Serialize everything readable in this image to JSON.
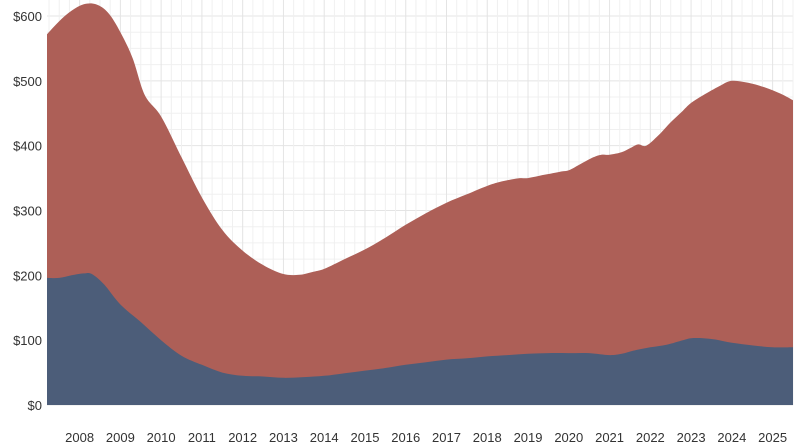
{
  "chart_data": {
    "type": "area",
    "stacked": false,
    "title": "",
    "xlabel": "",
    "ylabel": "",
    "grid": true,
    "xlim": [
      2007.2,
      2025.5
    ],
    "ylim": [
      0,
      600
    ],
    "y_ticks": [
      0,
      100,
      200,
      300,
      400,
      500,
      600
    ],
    "y_tick_labels": [
      "$0",
      "$100",
      "$200",
      "$300",
      "$400",
      "$500",
      "$600"
    ],
    "x_ticks": [
      2008,
      2009,
      2010,
      2011,
      2012,
      2013,
      2014,
      2015,
      2016,
      2017,
      2018,
      2019,
      2020,
      2021,
      2022,
      2023,
      2024,
      2025
    ],
    "x_tick_labels": [
      "2008",
      "2009",
      "2010",
      "2011",
      "2012",
      "2013",
      "2014",
      "2015",
      "2016",
      "2017",
      "2018",
      "2019",
      "2020",
      "2021",
      "2022",
      "2023",
      "2024",
      "2025"
    ],
    "colors": {
      "series_total": "#ad5f57",
      "series_base": "#4c5d79"
    },
    "series": [
      {
        "key": "total",
        "x": [
          2007.2,
          2007.5,
          2007.8,
          2008.1,
          2008.4,
          2008.7,
          2009.0,
          2009.3,
          2009.6,
          2010.0,
          2010.5,
          2011.0,
          2011.5,
          2012.0,
          2012.5,
          2013.0,
          2013.4,
          2013.7,
          2014.0,
          2014.5,
          2015.0,
          2015.5,
          2016.0,
          2016.5,
          2017.0,
          2017.5,
          2018.0,
          2018.3,
          2018.6,
          2018.8,
          2019.0,
          2019.4,
          2019.8,
          2020.0,
          2020.3,
          2020.6,
          2020.8,
          2021.0,
          2021.3,
          2021.5,
          2021.7,
          2021.9,
          2022.2,
          2022.5,
          2022.8,
          2023.0,
          2023.3,
          2023.7,
          2024.0,
          2024.4,
          2024.8,
          2025.2,
          2025.5
        ],
        "values": [
          572,
          592,
          608,
          618,
          618,
          605,
          575,
          535,
          478,
          445,
          382,
          320,
          270,
          238,
          216,
          202,
          201,
          205,
          210,
          225,
          240,
          258,
          278,
          296,
          312,
          325,
          338,
          344,
          348,
          350,
          350,
          355,
          360,
          362,
          372,
          382,
          386,
          386,
          390,
          396,
          402,
          400,
          416,
          436,
          454,
          466,
          478,
          492,
          500,
          497,
          490,
          480,
          470
        ]
      },
      {
        "key": "base",
        "x": [
          2007.2,
          2007.5,
          2007.8,
          2008.1,
          2008.3,
          2008.6,
          2009.0,
          2009.5,
          2010.0,
          2010.5,
          2011.0,
          2011.5,
          2012.0,
          2012.5,
          2013.0,
          2013.5,
          2014.0,
          2014.5,
          2015.0,
          2015.5,
          2016.0,
          2016.5,
          2017.0,
          2017.5,
          2018.0,
          2018.5,
          2019.0,
          2019.5,
          2020.0,
          2020.5,
          2021.0,
          2021.3,
          2021.6,
          2022.0,
          2022.4,
          2022.8,
          2023.0,
          2023.3,
          2023.6,
          2024.0,
          2024.5,
          2025.0,
          2025.5
        ],
        "values": [
          196,
          196,
          200,
          203,
          202,
          186,
          155,
          128,
          100,
          76,
          62,
          50,
          45,
          44,
          42,
          43,
          45,
          49,
          53,
          57,
          62,
          66,
          70,
          72,
          75,
          77,
          79,
          80,
          80,
          80,
          77,
          79,
          84,
          89,
          93,
          100,
          103,
          103,
          101,
          96,
          92,
          89,
          89
        ]
      }
    ]
  }
}
